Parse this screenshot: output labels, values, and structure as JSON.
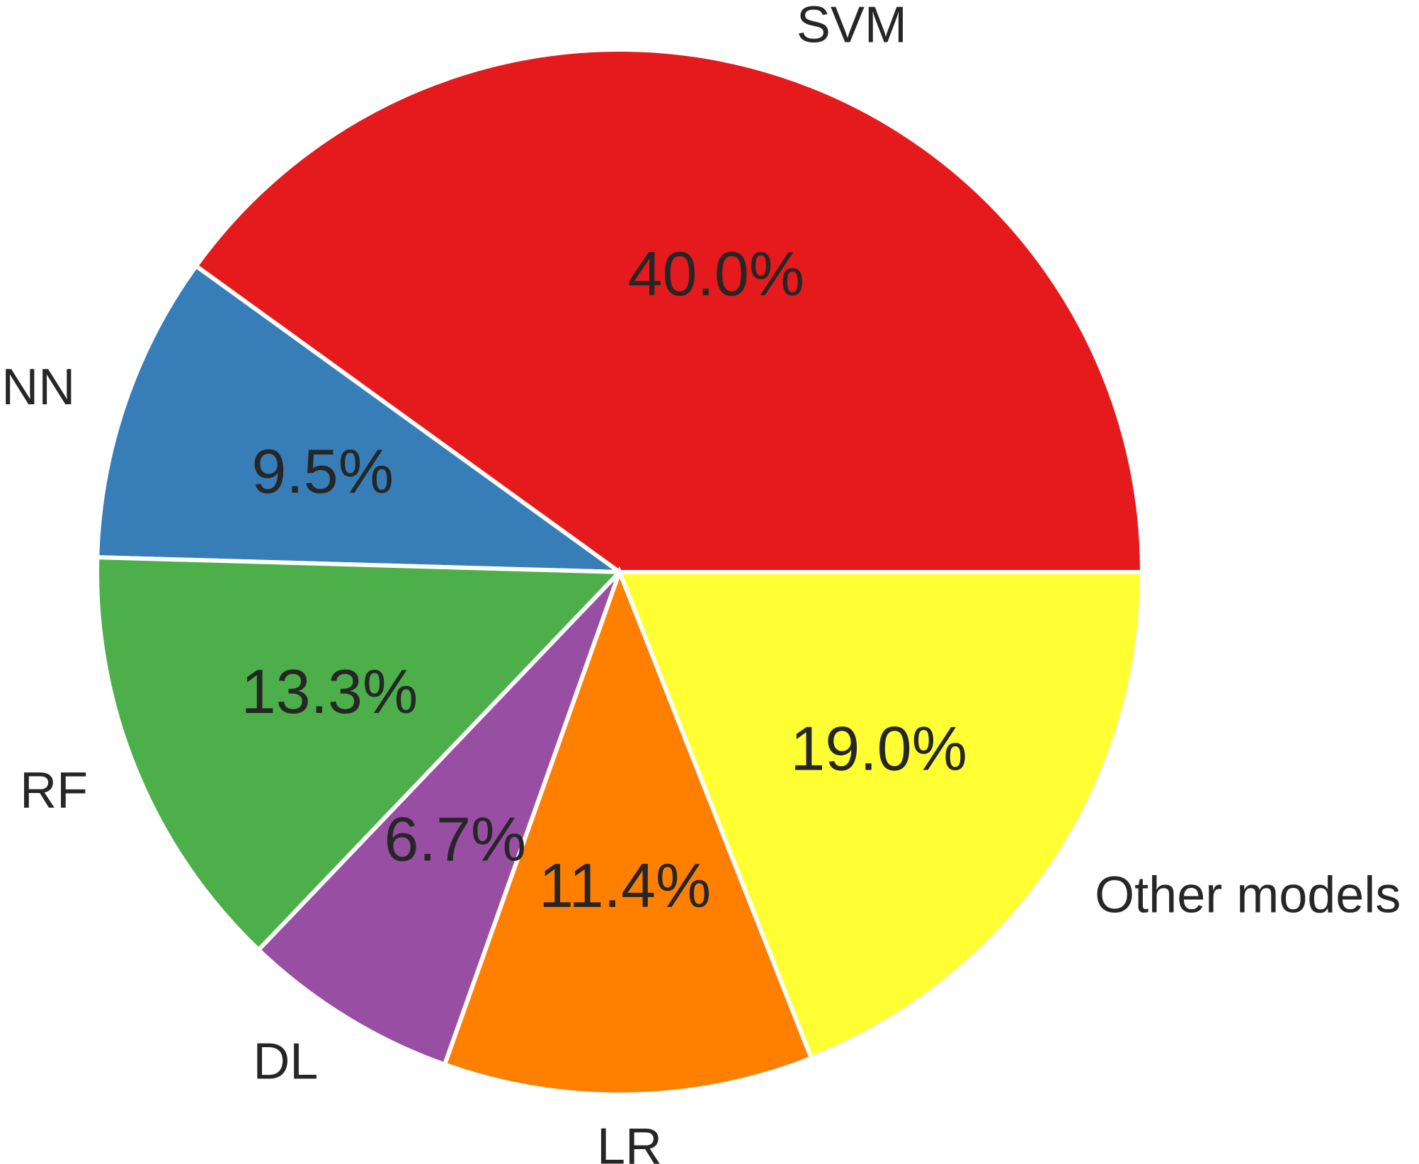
{
  "chart_data": {
    "type": "pie",
    "title": "",
    "start_angle_deg": 0,
    "direction": "counterclockwise",
    "slices": [
      {
        "label": "SVM",
        "value": 40.0,
        "pct_label": "40.0%",
        "color": "#e41a1c"
      },
      {
        "label": "NN",
        "value": 9.5,
        "pct_label": "9.5%",
        "color": "#377eb8"
      },
      {
        "label": "RF",
        "value": 13.3,
        "pct_label": "13.3%",
        "color": "#4daf4a"
      },
      {
        "label": "DL",
        "value": 6.7,
        "pct_label": "6.7%",
        "color": "#984ea3"
      },
      {
        "label": "LR",
        "value": 11.4,
        "pct_label": "11.4%",
        "color": "#ff7f00"
      },
      {
        "label": "Other models",
        "value": 19.0,
        "pct_label": "19.0%",
        "color": "#ffff33"
      }
    ]
  }
}
